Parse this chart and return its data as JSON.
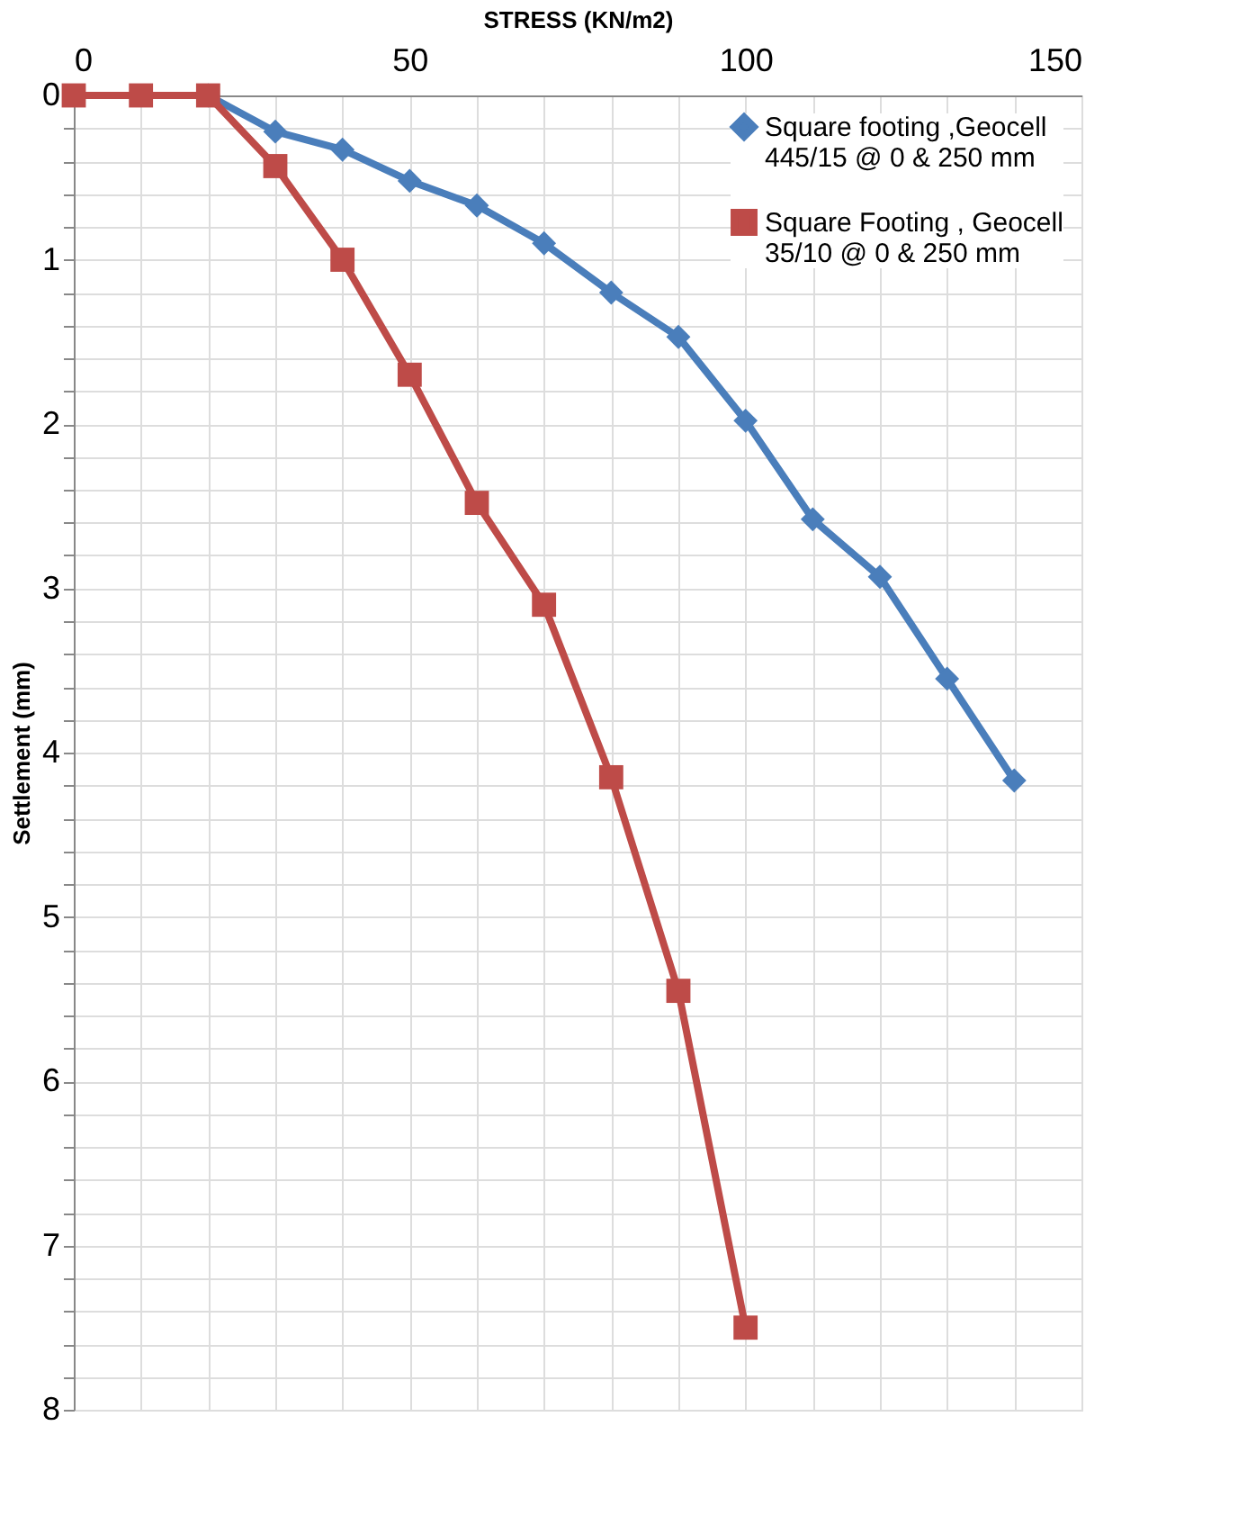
{
  "chart_data": {
    "type": "line",
    "xlabel": "STRESS (KN/m2)",
    "ylabel": "Settlement (mm)",
    "xlim": [
      0,
      150
    ],
    "ylim": [
      8,
      0
    ],
    "xticks": [
      0,
      {
        "value": 10,
        "label": null
      },
      {
        "value": 20,
        "label": null
      },
      {
        "value": 30,
        "label": null
      },
      {
        "value": 40,
        "label": null
      },
      50,
      {
        "value": 60,
        "label": null
      },
      {
        "value": 70,
        "label": null
      },
      {
        "value": 80,
        "label": null
      },
      {
        "value": 90,
        "label": null
      },
      100,
      {
        "value": 110,
        "label": null
      },
      {
        "value": 120,
        "label": null
      },
      {
        "value": 130,
        "label": null
      },
      {
        "value": 140,
        "label": null
      },
      150
    ],
    "yticks": [
      0,
      {
        "value": 0.2,
        "label": null
      },
      {
        "value": 0.4,
        "label": null
      },
      {
        "value": 0.6,
        "label": null
      },
      {
        "value": 0.8,
        "label": null
      },
      1,
      {
        "value": 1.2,
        "label": null
      },
      {
        "value": 1.4,
        "label": null
      },
      {
        "value": 1.6,
        "label": null
      },
      {
        "value": 1.8,
        "label": null
      },
      2,
      {
        "value": 2.2,
        "label": null
      },
      {
        "value": 2.4,
        "label": null
      },
      {
        "value": 2.6,
        "label": null
      },
      {
        "value": 2.8,
        "label": null
      },
      3,
      {
        "value": 3.2,
        "label": null
      },
      {
        "value": 3.4,
        "label": null
      },
      {
        "value": 3.6,
        "label": null
      },
      {
        "value": 3.8,
        "label": null
      },
      4,
      {
        "value": 4.2,
        "label": null
      },
      {
        "value": 4.4,
        "label": null
      },
      {
        "value": 4.6,
        "label": null
      },
      {
        "value": 4.8,
        "label": null
      },
      5,
      {
        "value": 5.2,
        "label": null
      },
      {
        "value": 5.4,
        "label": null
      },
      {
        "value": 5.6,
        "label": null
      },
      {
        "value": 5.8,
        "label": null
      },
      6,
      {
        "value": 6.2,
        "label": null
      },
      {
        "value": 6.4,
        "label": null
      },
      {
        "value": 6.6,
        "label": null
      },
      {
        "value": 6.8,
        "label": null
      },
      7,
      {
        "value": 7.2,
        "label": null
      },
      {
        "value": 7.4,
        "label": null
      },
      {
        "value": 7.6,
        "label": null
      },
      {
        "value": 7.8,
        "label": null
      },
      8
    ],
    "grid": true,
    "legend": "top right",
    "line_style": "solid",
    "series": [
      {
        "name": "Square footing ,Geocell 445/15 @ 0 & 250 mm",
        "color": "#4a7ebb",
        "marker": "diamond",
        "x": [
          20,
          30,
          40,
          50,
          60,
          70,
          80,
          90,
          100,
          110,
          120,
          130,
          140
        ],
        "values": [
          0,
          0.22,
          0.33,
          0.52,
          0.67,
          0.9,
          1.2,
          1.47,
          1.98,
          2.58,
          2.93,
          3.55,
          4.17
        ]
      },
      {
        "name": "Square Footing , Geocell 35/10 @ 0 & 250 mm",
        "color": "#be4b48",
        "marker": "square",
        "x": [
          0,
          10,
          20,
          30,
          40,
          50,
          60,
          70,
          80,
          90,
          100
        ],
        "values": [
          0,
          0,
          0,
          0.43,
          1.0,
          1.7,
          2.48,
          3.1,
          4.15,
          5.45,
          7.5
        ]
      }
    ]
  }
}
